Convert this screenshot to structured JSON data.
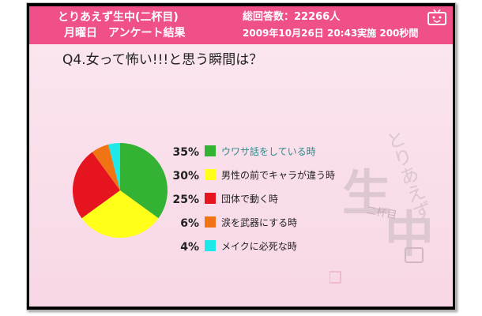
{
  "header": {
    "title_line1": "とりあえず生中(二杯目)",
    "title_line2": "月曜日　アンケート結果",
    "respondents": "総回答数：22266人",
    "conducted": "2009年10月26日 20:43実施 200秒間"
  },
  "question": "Q4.女って怖い!!!と思う瞬間は？",
  "watermark": {
    "text_hiragana": "とりあえず",
    "text_kanji1": "生",
    "text_kanji2": "中",
    "text_sub": "二杯目"
  },
  "chart_data": {
    "type": "pie",
    "title": "",
    "categories": [
      "ウワサ話をしている時",
      "男性の前でキャラが違う時",
      "団体で動く時",
      "涙を武器にする時",
      "メイクに必死な時"
    ],
    "values": [
      35,
      30,
      25,
      6,
      4
    ],
    "value_labels": [
      "35%",
      "30%",
      "25%",
      "6%",
      "4%"
    ],
    "colors": [
      "#33b233",
      "#ffff1a",
      "#e6141e",
      "#f07314",
      "#1ee8e8"
    ],
    "highlight_label_color": "#2a8a8a",
    "label_color": "#222222",
    "legend": "right"
  }
}
